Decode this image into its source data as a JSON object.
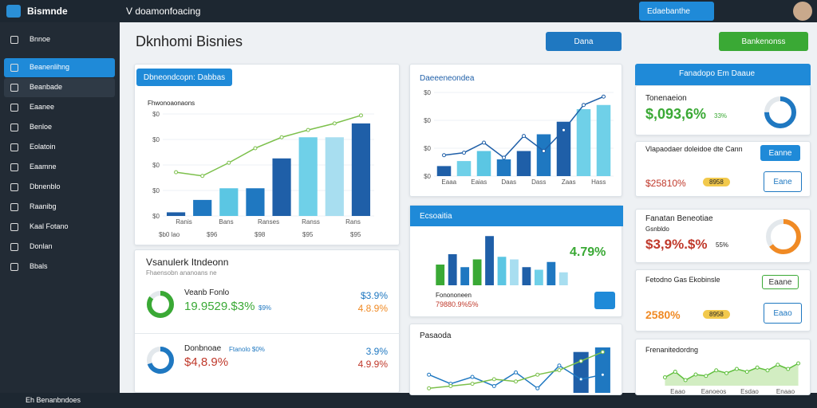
{
  "topbar": {
    "brand": "Bismnde",
    "title": "V doamonfoacing",
    "button": "Edaebanthe"
  },
  "sidebar": {
    "items": [
      "Bnnoe",
      "Beanenlihng",
      "Beanbade",
      "Eaanee",
      "Benloe",
      "Eolatoin",
      "Eaamne",
      "Dbnenblo",
      "Raanibg",
      "Kaal Fotano",
      "Donlan",
      "Bbals"
    ],
    "active": 1
  },
  "footer": {
    "text": "Eh Benanbndoes"
  },
  "page": {
    "heading": "Dknhomi Bisnies",
    "button_primary": "Dana",
    "button_secondary": "Bankenonss"
  },
  "revenue": {
    "tab": "Dbneondcopn: Dabbas",
    "subtitle": "Fhwonoaonaons",
    "yticks": [
      "$0",
      "$0",
      "$0",
      "$0",
      "$0"
    ],
    "categories": [
      "Ranis",
      "Bans",
      "Ranses",
      "Ranss",
      "Rans"
    ],
    "footer": [
      "$b0 lao",
      "$96",
      "$98",
      "$95",
      "$95"
    ],
    "chart": {
      "ylim": [
        0,
        140
      ],
      "bars": [
        5,
        22,
        38,
        38,
        79,
        108,
        108,
        127
      ],
      "bar_colors": [
        "#1f5fa8",
        "#1f78c1",
        "#5bc6e3",
        "#1f78c1",
        "#1f5fa8",
        "#6fd0e8",
        "#a8def0",
        "#1f5fa8"
      ],
      "line": [
        60,
        55,
        73,
        93,
        108,
        118,
        127,
        138
      ],
      "line_color": "#7cc04b"
    }
  },
  "targets": {
    "title": "Vsanulerk Itndeonn",
    "subtitle": "Fhaensobn ananoans ne",
    "rows": [
      {
        "label": "Veanb Fonlo",
        "value": "19.9529.$3%",
        "note": "$9%",
        "right_top": "$3.9%",
        "right_bottom": "4.8.9%",
        "progress": 85,
        "color": "#3aa935"
      },
      {
        "label": "Donbnoae",
        "value": "$4,8.9%",
        "note": "Ftanolo $0%",
        "right_top": "3.9%",
        "right_bottom": "4.9.9%",
        "progress": 70,
        "color": "#1f78c1"
      }
    ]
  },
  "growth": {
    "title": "Daeeeneondea",
    "yticks": [
      "$0",
      "$0",
      "$0",
      "$0"
    ],
    "categories": [
      "Eaaa",
      "Eaias",
      "Daas",
      "Dass",
      "Zaas",
      "Hass"
    ],
    "chart": {
      "ylim": [
        0,
        100
      ],
      "bars": [
        12,
        18,
        30,
        20,
        30,
        50,
        65,
        80,
        85
      ],
      "bar_colors": [
        "#1f5fa8",
        "#6fd0e8",
        "#5bc6e3",
        "#1f78c1",
        "#1f5fa8",
        "#1f78c1",
        "#1f5fa8",
        "#6fd0e8",
        "#6fd0e8"
      ],
      "line": [
        25,
        28,
        40,
        22,
        48,
        30,
        55,
        85,
        95
      ],
      "line_color": "#1f5fa8"
    }
  },
  "sales": {
    "title": "Ecsoaitia",
    "highlight": "4.79%",
    "footer_label": "Fonononeen",
    "footer_value": "79880.9%5%",
    "chart": {
      "ylim": [
        0,
        100
      ],
      "bars": [
        40,
        60,
        35,
        50,
        95,
        55,
        50,
        35,
        30,
        45,
        25
      ],
      "bar_colors": [
        "#3aa935",
        "#1f5fa8",
        "#1f78c1",
        "#3aa935",
        "#1f5fa8",
        "#5bc6e3",
        "#a8def0",
        "#1f5fa8",
        "#6fd0e8",
        "#1f78c1",
        "#a8def0"
      ]
    }
  },
  "trend": {
    "title": "Pasaoda",
    "chart": {
      "ylim": [
        0,
        100
      ],
      "line": [
        40,
        20,
        35,
        15,
        45,
        10,
        60,
        30,
        40
      ],
      "line_color": "#1f78c1",
      "line2": [
        10,
        15,
        20,
        30,
        25,
        40,
        50,
        70,
        90
      ],
      "line2_color": "#7cc04b",
      "bars": [
        0,
        0,
        0,
        0,
        0,
        0,
        0,
        90,
        100
      ],
      "bar_colors": [
        "#1f5fa8",
        "#1f5fa8",
        "#1f5fa8",
        "#1f5fa8",
        "#1f5fa8",
        "#1f5fa8",
        "#1f5fa8",
        "#1f5fa8",
        "#1f78c1"
      ]
    }
  },
  "summary": {
    "header": "Fanadopo Em Daaue",
    "card1": {
      "title": "Tonenaeion",
      "value": "$,093,6%",
      "note": "33%",
      "progress": 75
    },
    "card2": {
      "title": "Vlapaodaer doleidoe dte Cann",
      "button": "Eanne",
      "tag": "$25810%",
      "pill": "8958",
      "outline": "Eane"
    },
    "card3": {
      "title": "Fanatan Beneotiae",
      "subtitle": "Gsnbldo",
      "value": "$3,9%.$%",
      "note": "55%",
      "progress": 65
    },
    "card4": {
      "title": "Fetodno Gas Ekobinsle",
      "button": "Eaane",
      "tag": "2580%",
      "pill": "8958",
      "outline": "Eaao"
    },
    "card5": {
      "title": "Frenanitedordng",
      "categories": [
        "Eaao",
        "Eanoeos",
        "Esdao",
        "Enaao"
      ],
      "chart": {
        "ylim": [
          0,
          100
        ],
        "line": [
          30,
          50,
          20,
          40,
          35,
          55,
          45,
          60,
          50,
          65,
          55,
          75,
          60,
          80
        ],
        "line_color": "#5fbf3c"
      }
    }
  }
}
